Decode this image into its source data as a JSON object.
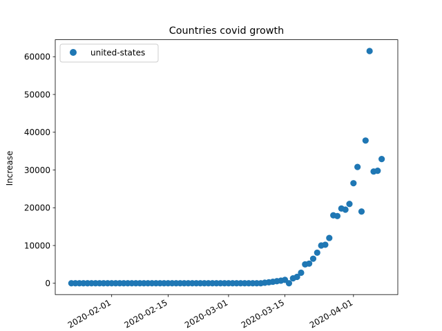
{
  "chart_data": {
    "type": "scatter",
    "title": "Countries covid growth",
    "xlabel": "",
    "ylabel": "Increase",
    "legend_position": "top-left",
    "grid": false,
    "x_ticks": [
      "2020-02-01",
      "2020-02-15",
      "2020-03-01",
      "2020-03-15",
      "2020-04-01"
    ],
    "y_ticks": [
      0,
      10000,
      20000,
      30000,
      40000,
      50000,
      60000
    ],
    "xlim": [
      "2020-01-18",
      "2020-04-12"
    ],
    "ylim": [
      -3000,
      64500
    ],
    "series": [
      {
        "name": "united-states",
        "color": "#1f77b4",
        "start_date": "2020-01-22",
        "values": [
          0,
          0,
          0,
          0,
          0,
          0,
          0,
          0,
          0,
          0,
          0,
          0,
          0,
          0,
          0,
          0,
          0,
          0,
          0,
          0,
          0,
          0,
          0,
          0,
          0,
          0,
          0,
          0,
          0,
          0,
          0,
          0,
          0,
          0,
          0,
          0,
          0,
          0,
          0,
          0,
          0,
          0,
          0,
          0,
          0,
          0,
          0,
          0,
          150,
          250,
          400,
          550,
          700,
          900,
          0,
          1300,
          1700,
          2800,
          5000,
          5200,
          6500,
          8100,
          10000,
          10200,
          12000,
          18000,
          17800,
          19800,
          19500,
          21000,
          26500,
          30800,
          19000,
          37800,
          61500,
          29600,
          29800,
          32900
        ]
      }
    ]
  }
}
